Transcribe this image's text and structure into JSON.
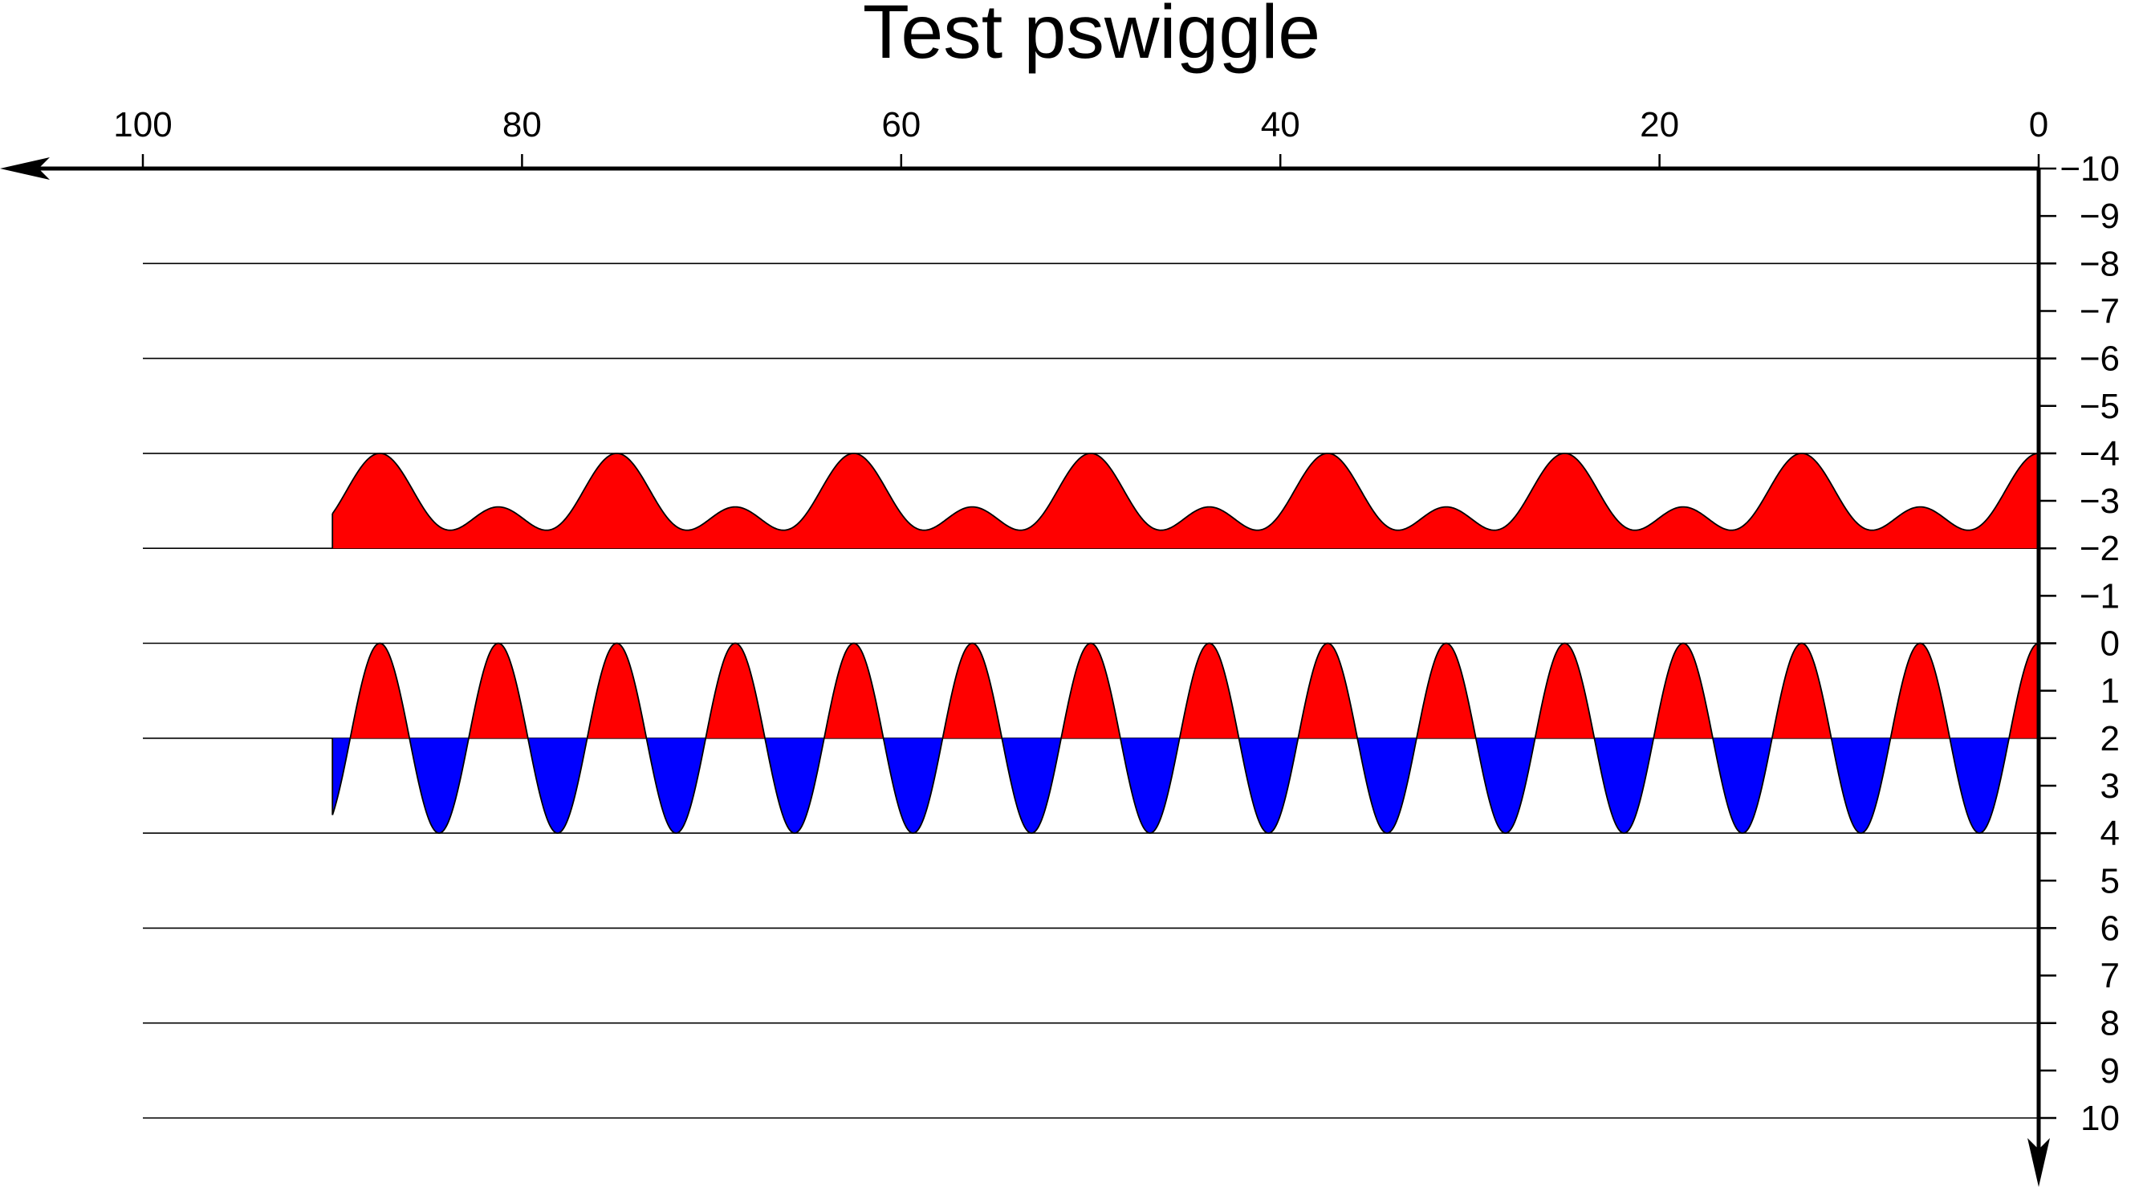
{
  "chart_data": {
    "type": "area",
    "title": "Test pswiggle",
    "xlabel": "",
    "ylabel": "",
    "x_axis": {
      "ticks": [
        100,
        80,
        60,
        40,
        20,
        0
      ],
      "range": [
        100,
        0
      ],
      "reversed": true,
      "placement": "top"
    },
    "y_axis": {
      "ticks": [
        "-10",
        "-9",
        "-8",
        "-7",
        "-6",
        "-5",
        "-4",
        "-3",
        "-2",
        "-1",
        "0",
        "1",
        "2",
        "3",
        "4",
        "5",
        "6",
        "7",
        "8",
        "9",
        "10"
      ],
      "range": [
        -10,
        10
      ],
      "reversed": true,
      "placement": "right"
    },
    "grid": true,
    "gridlines_y": [
      -8,
      -6,
      -4,
      -2,
      0,
      2,
      4,
      6,
      8,
      10
    ],
    "colors": {
      "positive": "#ff0000",
      "negative": "#0000ff",
      "lines": "#000000"
    },
    "series": [
      {
        "baseline": -2,
        "x_range": [
          0,
          90
        ],
        "amplitude": 2,
        "components": [
          {
            "amp": 0.82,
            "period": 6.25,
            "phase": 0
          },
          {
            "amp": 0.95,
            "period": 12.5,
            "phase": 0
          }
        ],
        "offset": 1.6
      },
      {
        "baseline": 2,
        "x_range": [
          0,
          90
        ],
        "amplitude": 2,
        "components": [
          {
            "amp": 1.0,
            "period": 6.25,
            "phase": 0
          }
        ],
        "offset": 0
      }
    ]
  }
}
